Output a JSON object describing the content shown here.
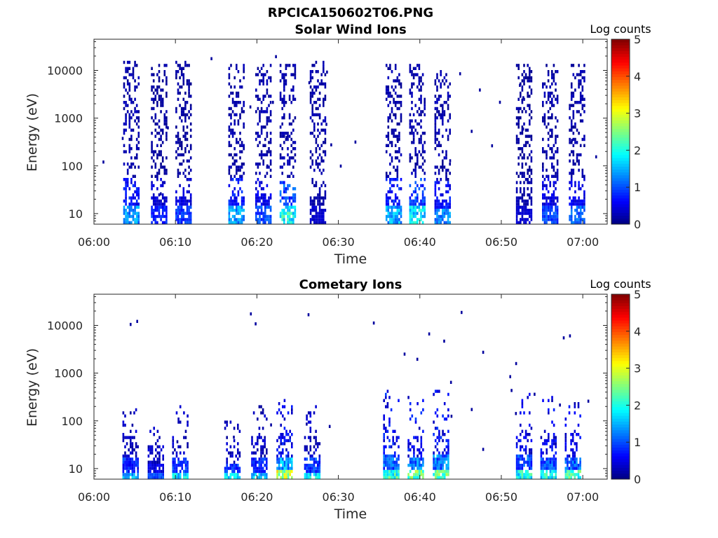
{
  "figure_title": "RPCICA150602T06.PNG",
  "colors": {
    "axis": "#262626",
    "background": "#ffffff"
  },
  "chart_data": [
    {
      "type": "heatmap",
      "title": "Solar Wind Ions",
      "xlabel": "Time",
      "ylabel": "Energy (eV)",
      "x_tick_labels": [
        "06:00",
        "06:10",
        "06:20",
        "06:30",
        "06:40",
        "06:50",
        "07:00"
      ],
      "x_ticks_min": [
        0,
        10,
        20,
        30,
        40,
        50,
        60
      ],
      "xlim_min": [
        0,
        63
      ],
      "y_scale": "log",
      "y_tick_labels": [
        "10",
        "100",
        "1000",
        "10000"
      ],
      "y_ticks": [
        10,
        100,
        1000,
        10000
      ],
      "ylim": [
        6,
        45000
      ],
      "colorbar": {
        "label": "Log counts",
        "min": 0,
        "max": 5,
        "tick_labels": [
          "0",
          "1",
          "2",
          "3",
          "4",
          "5"
        ],
        "colormap": "jet"
      },
      "bursts": [
        {
          "t_min": 4.6,
          "low_level": 1.4,
          "high_level": 0.2,
          "top_ev": 14000
        },
        {
          "t_min": 8.0,
          "low_level": 0.8,
          "high_level": 0.15,
          "top_ev": 12000
        },
        {
          "t_min": 11.0,
          "low_level": 0.9,
          "high_level": 0.15,
          "top_ev": 15000
        },
        {
          "t_min": 17.5,
          "low_level": 1.4,
          "high_level": 0.2,
          "top_ev": 12000
        },
        {
          "t_min": 20.8,
          "low_level": 1.0,
          "high_level": 0.2,
          "top_ev": 13000
        },
        {
          "t_min": 23.8,
          "low_level": 2.0,
          "high_level": 0.2,
          "top_ev": 12000
        },
        {
          "t_min": 27.5,
          "low_level": 0.4,
          "high_level": 0.2,
          "top_ev": 15000
        },
        {
          "t_min": 36.8,
          "low_level": 1.5,
          "high_level": 0.2,
          "top_ev": 12000
        },
        {
          "t_min": 39.7,
          "low_level": 1.8,
          "high_level": 0.2,
          "top_ev": 12000
        },
        {
          "t_min": 42.8,
          "low_level": 1.3,
          "high_level": 0.2,
          "top_ev": 10000
        },
        {
          "t_min": 52.8,
          "low_level": 0.4,
          "high_level": 0.15,
          "top_ev": 12000
        },
        {
          "t_min": 56.0,
          "low_level": 1.0,
          "high_level": 0.2,
          "top_ev": 12000
        },
        {
          "t_min": 59.3,
          "low_level": 1.1,
          "high_level": 0.2,
          "top_ev": 13000
        }
      ]
    },
    {
      "type": "heatmap",
      "title": "Cometary Ions",
      "xlabel": "Time",
      "ylabel": "Energy (eV)",
      "x_tick_labels": [
        "06:00",
        "06:10",
        "06:20",
        "06:30",
        "06:40",
        "06:50",
        "07:00"
      ],
      "x_ticks_min": [
        0,
        10,
        20,
        30,
        40,
        50,
        60
      ],
      "xlim_min": [
        0,
        63
      ],
      "y_scale": "log",
      "y_tick_labels": [
        "10",
        "100",
        "1000",
        "10000"
      ],
      "y_ticks": [
        10,
        100,
        1000,
        10000
      ],
      "ylim": [
        6,
        45000
      ],
      "colorbar": {
        "label": "Log counts",
        "min": 0,
        "max": 5,
        "tick_labels": [
          "0",
          "1",
          "2",
          "3",
          "4",
          "5"
        ],
        "colormap": "jet"
      },
      "bursts": [
        {
          "t_min": 4.5,
          "low_level": 1.6,
          "high_level": 0.3,
          "top_ev": 200
        },
        {
          "t_min": 7.6,
          "low_level": 1.0,
          "high_level": 0.3,
          "top_ev": 100
        },
        {
          "t_min": 10.6,
          "low_level": 1.8,
          "high_level": 0.3,
          "top_ev": 200
        },
        {
          "t_min": 17.0,
          "low_level": 1.7,
          "high_level": 0.3,
          "top_ev": 100
        },
        {
          "t_min": 20.3,
          "low_level": 1.6,
          "high_level": 0.3,
          "top_ev": 200
        },
        {
          "t_min": 23.4,
          "low_level": 2.8,
          "high_level": 0.6,
          "top_ev": 300
        },
        {
          "t_min": 26.8,
          "low_level": 1.8,
          "high_level": 0.3,
          "top_ev": 200
        },
        {
          "t_min": 36.5,
          "low_level": 2.2,
          "high_level": 0.6,
          "top_ev": 400
        },
        {
          "t_min": 39.5,
          "low_level": 2.4,
          "high_level": 0.6,
          "top_ev": 300
        },
        {
          "t_min": 42.6,
          "low_level": 2.4,
          "high_level": 0.6,
          "top_ev": 400
        },
        {
          "t_min": 52.8,
          "low_level": 2.0,
          "high_level": 0.5,
          "top_ev": 400
        },
        {
          "t_min": 55.8,
          "low_level": 2.0,
          "high_level": 0.5,
          "top_ev": 300
        },
        {
          "t_min": 58.8,
          "low_level": 2.2,
          "high_level": 0.5,
          "top_ev": 300
        }
      ]
    }
  ]
}
